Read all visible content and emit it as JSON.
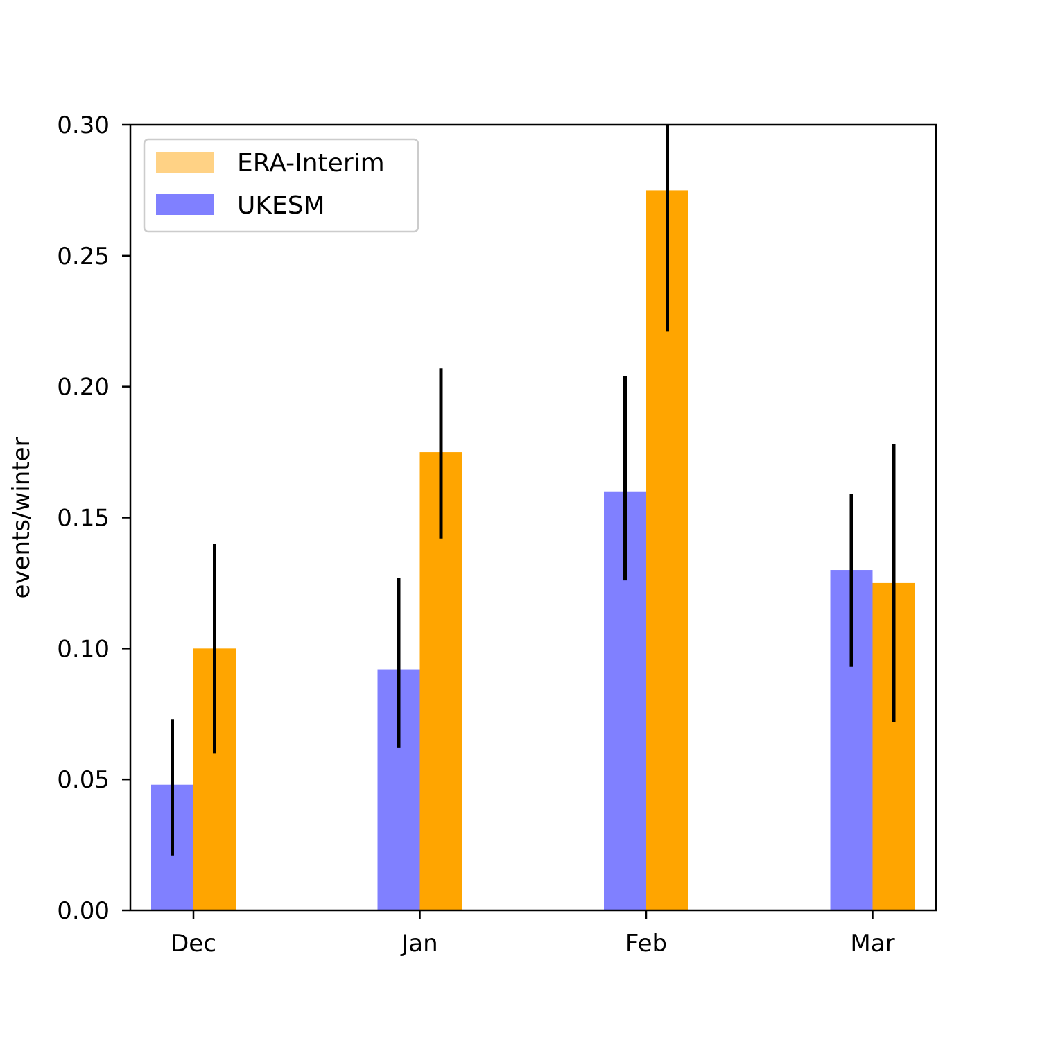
{
  "chart_data": {
    "type": "bar",
    "title": "",
    "xlabel": "",
    "ylabel": "events/winter",
    "categories": [
      "Dec",
      "Jan",
      "Feb",
      "Mar"
    ],
    "ylim": [
      0,
      0.3
    ],
    "yticks": [
      "0.00",
      "0.05",
      "0.10",
      "0.15",
      "0.20",
      "0.25",
      "0.30"
    ],
    "grid": false,
    "legend_position": "top-left",
    "series": [
      {
        "name": "UKESM",
        "color": "#8080ff",
        "values": [
          0.048,
          0.092,
          0.16,
          0.13
        ],
        "error_low": [
          0.021,
          0.062,
          0.126,
          0.093
        ],
        "error_high": [
          0.073,
          0.127,
          0.204,
          0.159
        ]
      },
      {
        "name": "ERA-Interim",
        "color": "#ffa500",
        "legend_color": "#ffd285",
        "values": [
          0.1,
          0.175,
          0.275,
          0.125
        ],
        "error_low": [
          0.06,
          0.142,
          0.221,
          0.072
        ],
        "error_high": [
          0.14,
          0.207,
          0.302,
          0.178
        ]
      }
    ],
    "legend_order": [
      "ERA-Interim",
      "UKESM"
    ]
  }
}
